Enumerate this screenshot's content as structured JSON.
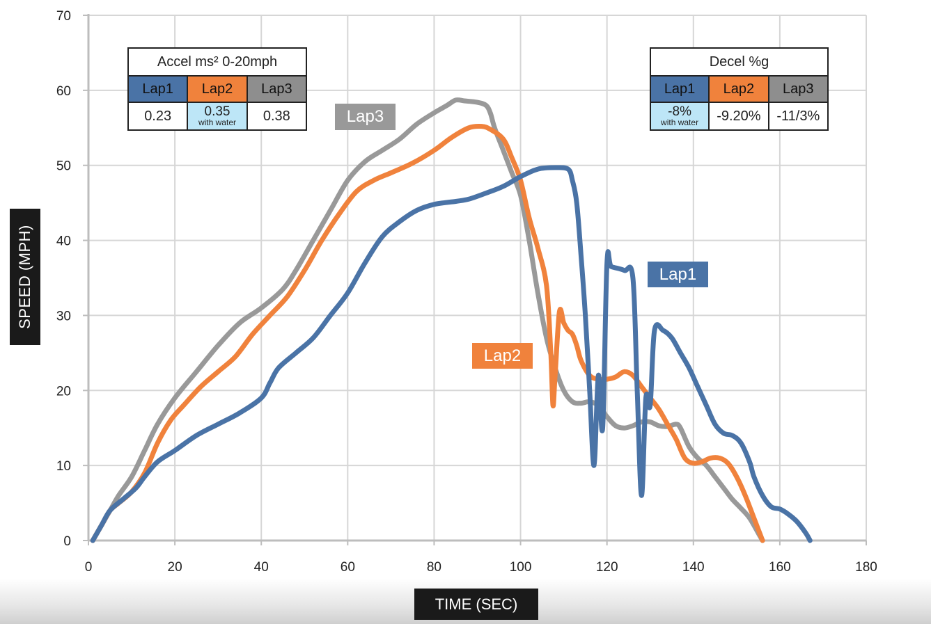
{
  "chart_data": {
    "type": "line",
    "title": "",
    "xlabel": "TIME (SEC)",
    "ylabel": "SPEED (MPH)",
    "xlim": [
      0,
      180
    ],
    "ylim": [
      0,
      70
    ],
    "xticks": [
      0,
      20,
      40,
      60,
      80,
      100,
      120,
      140,
      160,
      180
    ],
    "yticks": [
      0,
      10,
      20,
      30,
      40,
      50,
      60,
      70
    ],
    "grid": true,
    "series": [
      {
        "name": "Lap1",
        "color": "#4a73a6",
        "points": [
          [
            1,
            0
          ],
          [
            3,
            2
          ],
          [
            5,
            4
          ],
          [
            8,
            5.5
          ],
          [
            11,
            7
          ],
          [
            13,
            8.5
          ],
          [
            16,
            10.5
          ],
          [
            20,
            12
          ],
          [
            25,
            14
          ],
          [
            30,
            15.5
          ],
          [
            35,
            17
          ],
          [
            40,
            19
          ],
          [
            42,
            21
          ],
          [
            44,
            23
          ],
          [
            48,
            25
          ],
          [
            52,
            27
          ],
          [
            56,
            30
          ],
          [
            60,
            33
          ],
          [
            64,
            37
          ],
          [
            68,
            40.5
          ],
          [
            72,
            42.5
          ],
          [
            76,
            44
          ],
          [
            80,
            44.8
          ],
          [
            85,
            45.2
          ],
          [
            88,
            45.5
          ],
          [
            92,
            46.3
          ],
          [
            96,
            47.2
          ],
          [
            100,
            48.5
          ],
          [
            104,
            49.5
          ],
          [
            108,
            49.7
          ],
          [
            111,
            49.5
          ],
          [
            112,
            48
          ],
          [
            113,
            45
          ],
          [
            114,
            38
          ],
          [
            115,
            30
          ],
          [
            116,
            20
          ],
          [
            117,
            10
          ],
          [
            118,
            22
          ],
          [
            119,
            15
          ],
          [
            120,
            37
          ],
          [
            121,
            36.5
          ],
          [
            124,
            36
          ],
          [
            126,
            35
          ],
          [
            127,
            20
          ],
          [
            128,
            6
          ],
          [
            129,
            19
          ],
          [
            130,
            18
          ],
          [
            131,
            28
          ],
          [
            133,
            28
          ],
          [
            135,
            27
          ],
          [
            137,
            25
          ],
          [
            139,
            23
          ],
          [
            141,
            20.5
          ],
          [
            143,
            18
          ],
          [
            145,
            15.5
          ],
          [
            147,
            14.3
          ],
          [
            149,
            14
          ],
          [
            151,
            13
          ],
          [
            153,
            10.5
          ],
          [
            154,
            8.5
          ],
          [
            156,
            6
          ],
          [
            158,
            4.5
          ],
          [
            160,
            4.2
          ],
          [
            162,
            3.5
          ],
          [
            164,
            2.5
          ],
          [
            166,
            1
          ],
          [
            167,
            0
          ]
        ]
      },
      {
        "name": "Lap2",
        "color": "#f0823c",
        "points": [
          [
            1,
            0
          ],
          [
            3,
            2
          ],
          [
            5,
            4
          ],
          [
            7,
            5
          ],
          [
            10,
            6.5
          ],
          [
            13,
            9
          ],
          [
            16,
            13
          ],
          [
            19,
            16
          ],
          [
            22,
            18
          ],
          [
            26,
            20.5
          ],
          [
            30,
            22.5
          ],
          [
            34,
            24.5
          ],
          [
            38,
            27.5
          ],
          [
            42,
            30
          ],
          [
            46,
            32.5
          ],
          [
            50,
            36
          ],
          [
            54,
            40
          ],
          [
            58,
            43.5
          ],
          [
            62,
            46.5
          ],
          [
            66,
            48
          ],
          [
            70,
            49
          ],
          [
            75,
            50.3
          ],
          [
            80,
            52
          ],
          [
            84,
            53.7
          ],
          [
            88,
            55
          ],
          [
            91,
            55.2
          ],
          [
            93,
            54.8
          ],
          [
            96,
            53.5
          ],
          [
            98,
            51
          ],
          [
            100,
            48
          ],
          [
            102,
            43
          ],
          [
            104,
            39
          ],
          [
            106,
            34
          ],
          [
            107,
            25
          ],
          [
            107.5,
            18
          ],
          [
            108,
            22
          ],
          [
            109,
            30.5
          ],
          [
            110,
            29
          ],
          [
            111,
            28
          ],
          [
            112,
            27.5
          ],
          [
            113,
            26
          ],
          [
            114,
            24
          ],
          [
            116,
            22
          ],
          [
            118,
            21.5
          ],
          [
            120,
            21.5
          ],
          [
            122,
            21.8
          ],
          [
            124,
            22.5
          ],
          [
            126,
            22
          ],
          [
            128,
            20.5
          ],
          [
            130,
            19
          ],
          [
            132,
            17.5
          ],
          [
            134,
            15.5
          ],
          [
            136,
            13.5
          ],
          [
            138,
            11
          ],
          [
            140,
            10.3
          ],
          [
            142,
            10.5
          ],
          [
            144,
            11
          ],
          [
            146,
            11
          ],
          [
            148,
            10.3
          ],
          [
            150,
            8.5
          ],
          [
            152,
            6
          ],
          [
            154,
            3
          ],
          [
            156,
            0
          ]
        ]
      },
      {
        "name": "Lap3",
        "color": "#999999",
        "points": [
          [
            1,
            0
          ],
          [
            3,
            2
          ],
          [
            5,
            4
          ],
          [
            7,
            6
          ],
          [
            10,
            8.5
          ],
          [
            13,
            12
          ],
          [
            16,
            15.5
          ],
          [
            20,
            19
          ],
          [
            25,
            22.5
          ],
          [
            30,
            26
          ],
          [
            35,
            29
          ],
          [
            40,
            31
          ],
          [
            45,
            33.5
          ],
          [
            48,
            36
          ],
          [
            52,
            40
          ],
          [
            56,
            44
          ],
          [
            60,
            48
          ],
          [
            64,
            50.5
          ],
          [
            68,
            52
          ],
          [
            72,
            53.5
          ],
          [
            76,
            55.5
          ],
          [
            80,
            57
          ],
          [
            83,
            58
          ],
          [
            85,
            58.7
          ],
          [
            87,
            58.6
          ],
          [
            90,
            58.4
          ],
          [
            92,
            58
          ],
          [
            93,
            57
          ],
          [
            94,
            55
          ],
          [
            96,
            52
          ],
          [
            98,
            49
          ],
          [
            100,
            46
          ],
          [
            102,
            40
          ],
          [
            104,
            33
          ],
          [
            106,
            27
          ],
          [
            108,
            23
          ],
          [
            110,
            20
          ],
          [
            112,
            18.5
          ],
          [
            114,
            18.3
          ],
          [
            116,
            18.5
          ],
          [
            118,
            18
          ],
          [
            120,
            16.5
          ],
          [
            122,
            15.3
          ],
          [
            124,
            15
          ],
          [
            126,
            15.3
          ],
          [
            128,
            15.8
          ],
          [
            130,
            15.8
          ],
          [
            132,
            15.3
          ],
          [
            134,
            15.2
          ],
          [
            136,
            15.5
          ],
          [
            137,
            15
          ],
          [
            139,
            12.5
          ],
          [
            141,
            11
          ],
          [
            143,
            10
          ],
          [
            145,
            8.5
          ],
          [
            147,
            7
          ],
          [
            149,
            5.5
          ],
          [
            151,
            4.3
          ],
          [
            153,
            3
          ],
          [
            155,
            1
          ],
          [
            156,
            0
          ]
        ]
      }
    ],
    "series_labels": [
      "Lap3",
      "Lap1",
      "Lap2"
    ]
  },
  "accel_table": {
    "title": "Accel ms² 0-20mph",
    "headers": [
      "Lap1",
      "Lap2",
      "Lap3"
    ],
    "values": [
      "0.23",
      "0.35",
      "0.38"
    ],
    "note": "with water"
  },
  "decel_table": {
    "title": "Decel %g",
    "headers": [
      "Lap1",
      "Lap2",
      "Lap3"
    ],
    "values": [
      "-8%",
      "-9.20%",
      "-11/3%"
    ],
    "note": "with water"
  }
}
